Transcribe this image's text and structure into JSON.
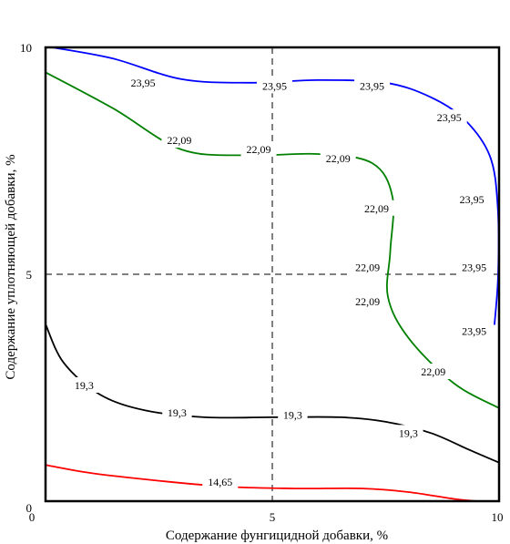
{
  "chart_data": {
    "type": "contour",
    "xlabel": "Содержание фунгицидной добавки, %",
    "ylabel": "Содержание уплотняющей добавки, %",
    "xlim": [
      0,
      10
    ],
    "ylim": [
      0,
      10
    ],
    "xticks": [
      "0",
      "5",
      "10"
    ],
    "yticks": [
      "0",
      "5",
      "10"
    ],
    "crosshair": {
      "x": 5,
      "y": 5,
      "style": "dashed"
    },
    "grid": false,
    "contours": [
      {
        "level": "23,95",
        "color": "#0000ff",
        "points": [
          [
            0.15,
            10.0
          ],
          [
            1.5,
            9.75
          ],
          [
            3.0,
            9.3
          ],
          [
            4.5,
            9.22
          ],
          [
            6.0,
            9.28
          ],
          [
            7.5,
            9.22
          ],
          [
            8.5,
            8.9
          ],
          [
            9.25,
            8.4
          ],
          [
            9.8,
            7.6
          ],
          [
            9.97,
            6.5
          ],
          [
            9.98,
            5.0
          ],
          [
            9.9,
            3.9
          ]
        ],
        "labels": [
          {
            "text": "23,95",
            "x": 2.15,
            "y": 9.22
          },
          {
            "text": "23,95",
            "x": 5.05,
            "y": 9.15
          },
          {
            "text": "23,95",
            "x": 7.2,
            "y": 9.15
          },
          {
            "text": "23,95",
            "x": 8.9,
            "y": 8.45
          },
          {
            "text": "23,95",
            "x": 9.4,
            "y": 6.65
          },
          {
            "text": "23,95",
            "x": 9.45,
            "y": 5.15
          },
          {
            "text": "23,95",
            "x": 9.45,
            "y": 3.75
          }
        ]
      },
      {
        "level": "22,09",
        "color": "#008000",
        "points": [
          [
            0.0,
            9.45
          ],
          [
            1.5,
            8.65
          ],
          [
            3.0,
            7.75
          ],
          [
            4.5,
            7.62
          ],
          [
            6.0,
            7.65
          ],
          [
            7.2,
            7.45
          ],
          [
            7.65,
            6.7
          ],
          [
            7.6,
            5.5
          ],
          [
            7.55,
            4.5
          ],
          [
            8.0,
            3.6
          ],
          [
            9.0,
            2.6
          ],
          [
            10.0,
            2.05
          ]
        ],
        "labels": [
          {
            "text": "22,09",
            "x": 2.95,
            "y": 7.95
          },
          {
            "text": "22,09",
            "x": 4.7,
            "y": 7.75
          },
          {
            "text": "22,09",
            "x": 6.45,
            "y": 7.55
          },
          {
            "text": "22,09",
            "x": 7.3,
            "y": 6.45
          },
          {
            "text": "22,09",
            "x": 7.1,
            "y": 5.15
          },
          {
            "text": "22,09",
            "x": 7.1,
            "y": 4.4
          },
          {
            "text": "22,09",
            "x": 8.55,
            "y": 2.85
          }
        ]
      },
      {
        "level": "19,3",
        "color": "#000000",
        "points": [
          [
            0.0,
            3.9
          ],
          [
            0.4,
            3.05
          ],
          [
            1.2,
            2.35
          ],
          [
            2.2,
            2.0
          ],
          [
            3.5,
            1.85
          ],
          [
            5.0,
            1.85
          ],
          [
            6.5,
            1.85
          ],
          [
            7.5,
            1.75
          ],
          [
            8.5,
            1.5
          ],
          [
            9.3,
            1.15
          ],
          [
            10.0,
            0.85
          ]
        ],
        "labels": [
          {
            "text": "19,3",
            "x": 0.85,
            "y": 2.55
          },
          {
            "text": "19,3",
            "x": 2.9,
            "y": 1.95
          },
          {
            "text": "19,3",
            "x": 5.45,
            "y": 1.9
          },
          {
            "text": "19,3",
            "x": 8.0,
            "y": 1.5
          }
        ]
      },
      {
        "level": "14,65",
        "color": "#ff0000",
        "points": [
          [
            0.0,
            0.8
          ],
          [
            1.0,
            0.62
          ],
          [
            2.5,
            0.45
          ],
          [
            4.0,
            0.32
          ],
          [
            5.5,
            0.28
          ],
          [
            7.0,
            0.28
          ],
          [
            8.0,
            0.2
          ],
          [
            9.0,
            0.05
          ],
          [
            9.5,
            0.0
          ]
        ],
        "labels": [
          {
            "text": "14,65",
            "x": 3.85,
            "y": 0.42
          }
        ]
      }
    ]
  }
}
